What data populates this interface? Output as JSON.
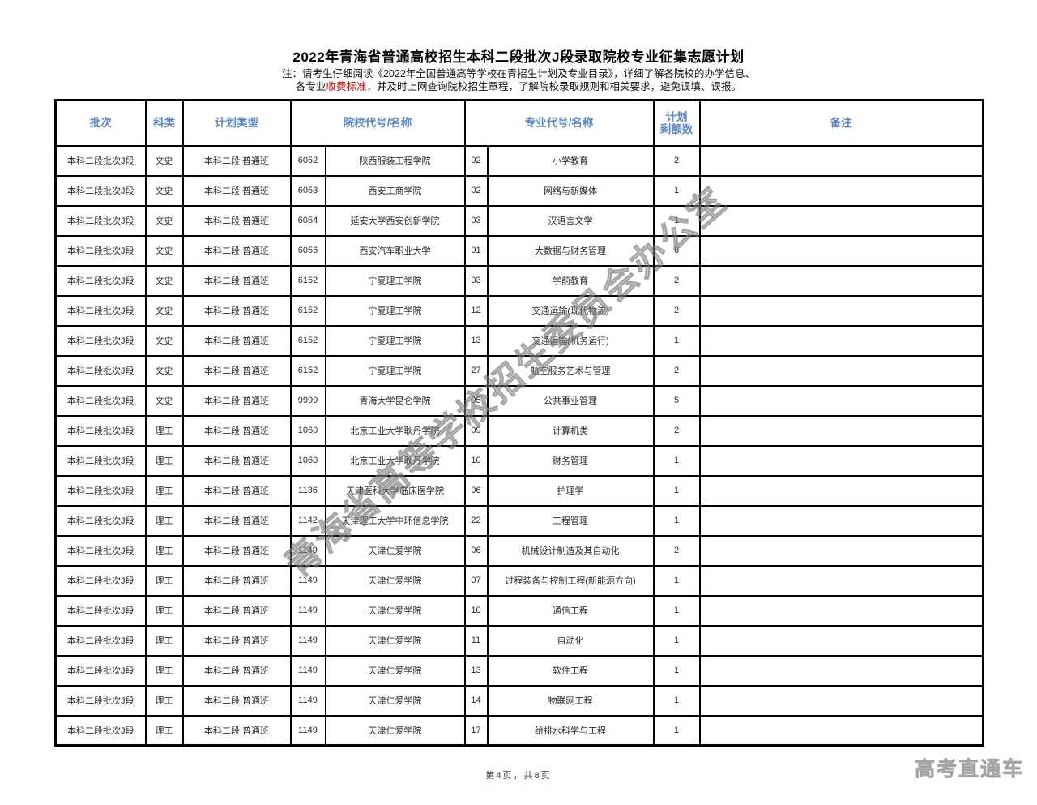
{
  "page": {
    "title": "2022年青海省普通高校招生本科二段批次J段录取院校专业征集志愿计划",
    "note_line1": "注：请考生仔细阅读《2022年全国普通高等学校在青招生计划及专业目录》，详细了解各院校的办学信息、",
    "note_line2_prefix": "各专业",
    "note_line2_red": "收费标准",
    "note_line2_suffix": "，并及时上网查询院校招生章程，了解院校录取规则和相关要求，避免误填、误报。",
    "footer_page": "第4页，共8页",
    "watermark": "青海省高等学校招生委员会办公室",
    "brand_watermark": "高考直通车"
  },
  "table": {
    "header_color": "#5b87c6",
    "headers": {
      "batch": "批次",
      "subject": "科类",
      "plan_type": "计划类型",
      "college": "院校代号/名称",
      "major": "专业代号/名称",
      "remaining_line1": "计划",
      "remaining_line2": "剩额数",
      "remark": "备注"
    },
    "rows": [
      {
        "batch": "本科二段批次J段",
        "subject": "文史",
        "plan_type": "本科二段 普通班",
        "college_code": "6052",
        "college_name": "陕西服装工程学院",
        "major_code": "02",
        "major_name": "小学教育",
        "remaining": "2",
        "remark": ""
      },
      {
        "batch": "本科二段批次J段",
        "subject": "文史",
        "plan_type": "本科二段 普通班",
        "college_code": "6053",
        "college_name": "西安工商学院",
        "major_code": "02",
        "major_name": "网络与新媒体",
        "remaining": "1",
        "remark": ""
      },
      {
        "batch": "本科二段批次J段",
        "subject": "文史",
        "plan_type": "本科二段 普通班",
        "college_code": "6054",
        "college_name": "延安大学西安创新学院",
        "major_code": "03",
        "major_name": "汉语言文学",
        "remaining": "1",
        "remark": ""
      },
      {
        "batch": "本科二段批次J段",
        "subject": "文史",
        "plan_type": "本科二段 普通班",
        "college_code": "6056",
        "college_name": "西安汽车职业大学",
        "major_code": "01",
        "major_name": "大数据与财务管理",
        "remaining": "6",
        "remark": ""
      },
      {
        "batch": "本科二段批次J段",
        "subject": "文史",
        "plan_type": "本科二段 普通班",
        "college_code": "6152",
        "college_name": "宁夏理工学院",
        "major_code": "03",
        "major_name": "学前教育",
        "remaining": "2",
        "remark": ""
      },
      {
        "batch": "本科二段批次J段",
        "subject": "文史",
        "plan_type": "本科二段 普通班",
        "college_code": "6152",
        "college_name": "宁夏理工学院",
        "major_code": "12",
        "major_name": "交通运输(现代物流)",
        "remaining": "2",
        "remark": ""
      },
      {
        "batch": "本科二段批次J段",
        "subject": "文史",
        "plan_type": "本科二段 普通班",
        "college_code": "6152",
        "college_name": "宁夏理工学院",
        "major_code": "13",
        "major_name": "交通运输(机务运行)",
        "remaining": "1",
        "remark": ""
      },
      {
        "batch": "本科二段批次J段",
        "subject": "文史",
        "plan_type": "本科二段 普通班",
        "college_code": "6152",
        "college_name": "宁夏理工学院",
        "major_code": "27",
        "major_name": "航空服务艺术与管理",
        "remaining": "2",
        "remark": ""
      },
      {
        "batch": "本科二段批次J段",
        "subject": "文史",
        "plan_type": "本科二段 普通班",
        "college_code": "9999",
        "college_name": "青海大学昆仑学院",
        "major_code": "05",
        "major_name": "公共事业管理",
        "remaining": "5",
        "remark": ""
      },
      {
        "batch": "本科二段批次J段",
        "subject": "理工",
        "plan_type": "本科二段 普通班",
        "college_code": "1060",
        "college_name": "北京工业大学耿丹学院",
        "major_code": "09",
        "major_name": "计算机类",
        "remaining": "2",
        "remark": ""
      },
      {
        "batch": "本科二段批次J段",
        "subject": "理工",
        "plan_type": "本科二段 普通班",
        "college_code": "1060",
        "college_name": "北京工业大学耿丹学院",
        "major_code": "10",
        "major_name": "财务管理",
        "remaining": "1",
        "remark": ""
      },
      {
        "batch": "本科二段批次J段",
        "subject": "理工",
        "plan_type": "本科二段 普通班",
        "college_code": "1136",
        "college_name": "天津医科大学临床医学院",
        "major_code": "06",
        "major_name": "护理学",
        "remaining": "1",
        "remark": ""
      },
      {
        "batch": "本科二段批次J段",
        "subject": "理工",
        "plan_type": "本科二段 普通班",
        "college_code": "1142",
        "college_name": "天津理工大学中环信息学院",
        "major_code": "22",
        "major_name": "工程管理",
        "remaining": "1",
        "remark": ""
      },
      {
        "batch": "本科二段批次J段",
        "subject": "理工",
        "plan_type": "本科二段 普通班",
        "college_code": "1149",
        "college_name": "天津仁爱学院",
        "major_code": "06",
        "major_name": "机械设计制造及其自动化",
        "remaining": "2",
        "remark": ""
      },
      {
        "batch": "本科二段批次J段",
        "subject": "理工",
        "plan_type": "本科二段 普通班",
        "college_code": "1149",
        "college_name": "天津仁爱学院",
        "major_code": "07",
        "major_name": "过程装备与控制工程(新能源方向)",
        "remaining": "1",
        "remark": ""
      },
      {
        "batch": "本科二段批次J段",
        "subject": "理工",
        "plan_type": "本科二段 普通班",
        "college_code": "1149",
        "college_name": "天津仁爱学院",
        "major_code": "10",
        "major_name": "通信工程",
        "remaining": "1",
        "remark": ""
      },
      {
        "batch": "本科二段批次J段",
        "subject": "理工",
        "plan_type": "本科二段 普通班",
        "college_code": "1149",
        "college_name": "天津仁爱学院",
        "major_code": "11",
        "major_name": "自动化",
        "remaining": "1",
        "remark": ""
      },
      {
        "batch": "本科二段批次J段",
        "subject": "理工",
        "plan_type": "本科二段 普通班",
        "college_code": "1149",
        "college_name": "天津仁爱学院",
        "major_code": "13",
        "major_name": "软件工程",
        "remaining": "1",
        "remark": ""
      },
      {
        "batch": "本科二段批次J段",
        "subject": "理工",
        "plan_type": "本科二段 普通班",
        "college_code": "1149",
        "college_name": "天津仁爱学院",
        "major_code": "14",
        "major_name": "物联网工程",
        "remaining": "1",
        "remark": ""
      },
      {
        "batch": "本科二段批次J段",
        "subject": "理工",
        "plan_type": "本科二段 普通班",
        "college_code": "1149",
        "college_name": "天津仁爱学院",
        "major_code": "17",
        "major_name": "给排水科学与工程",
        "remaining": "1",
        "remark": ""
      }
    ]
  }
}
